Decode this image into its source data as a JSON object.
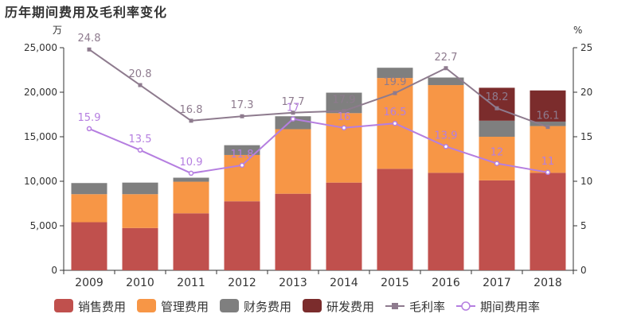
{
  "chart_data": {
    "type": "bar",
    "title": "历年期间费用及毛利率变化",
    "stacked": true,
    "categories": [
      "2009",
      "2010",
      "2011",
      "2012",
      "2013",
      "2014",
      "2015",
      "2016",
      "2017",
      "2018"
    ],
    "y_left_unit": "万",
    "y_right_unit": "%",
    "y_left_ticks": [
      "0",
      "5,000",
      "10,000",
      "15,000",
      "20,000",
      "25,000"
    ],
    "y_right_ticks": [
      "0",
      "5",
      "10",
      "15",
      "20",
      "25"
    ],
    "ylim_left": [
      0,
      25000
    ],
    "ylim_right": [
      0,
      25
    ],
    "grid": false,
    "legend_position": "bottom",
    "series": [
      {
        "name": "销售费用",
        "kind": "bar",
        "color": "#c0504d",
        "values": [
          5400,
          4750,
          6400,
          7750,
          8600,
          9850,
          11400,
          10950,
          10100,
          10950
        ]
      },
      {
        "name": "管理费用",
        "kind": "bar",
        "color": "#f79646",
        "values": [
          3150,
          3800,
          3550,
          5200,
          7250,
          7800,
          10200,
          9850,
          4900,
          5250
        ]
      },
      {
        "name": "财务费用",
        "kind": "bar",
        "color": "#7f7f7f",
        "values": [
          1250,
          1300,
          450,
          1100,
          1450,
          2300,
          1150,
          850,
          1800,
          500
        ]
      },
      {
        "name": "研发费用",
        "kind": "bar",
        "color": "#7b2c2c",
        "values": [
          0,
          0,
          0,
          0,
          0,
          0,
          0,
          0,
          3700,
          3500
        ]
      },
      {
        "name": "毛利率",
        "kind": "line",
        "axis": "right",
        "color": "#8e7b8e",
        "marker": "square",
        "values": [
          24.8,
          20.8,
          16.8,
          17.3,
          17.7,
          17.9,
          19.9,
          22.7,
          18.2,
          16.1
        ],
        "labels": [
          "24.8",
          "20.8",
          "16.8",
          "17.3",
          "17.7",
          "17.9",
          "19.9",
          "22.7",
          "18.2",
          "16.1"
        ]
      },
      {
        "name": "期间费用率",
        "kind": "line",
        "axis": "right",
        "color": "#b57ee0",
        "marker": "circle",
        "values": [
          15.9,
          13.5,
          10.9,
          11.8,
          17,
          16,
          16.5,
          13.9,
          12,
          11
        ],
        "labels": [
          "15.9",
          "13.5",
          "10.9",
          "11.8",
          "17",
          "16",
          "16.5",
          "13.9",
          "12",
          "11"
        ]
      }
    ]
  }
}
